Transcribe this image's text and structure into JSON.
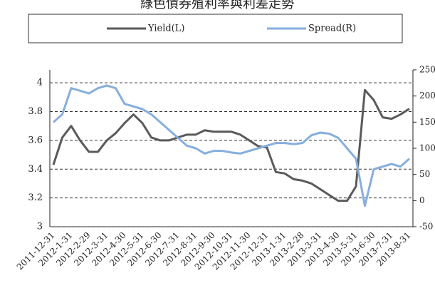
{
  "chart_data": {
    "type": "line",
    "title": "綠色債券殖利率與利差走勢",
    "categories": [
      "2011-12-31",
      null,
      "2012-1-31",
      null,
      "2012-2-29",
      null,
      "2012-3-31",
      null,
      "2012-4-30",
      null,
      "2012-5-31",
      null,
      "2012-6-30",
      null,
      "2012-7-31",
      null,
      "2012-8-31",
      null,
      "2012-9-30",
      null,
      "2012-10-31",
      null,
      "2012-11-30",
      null,
      "2012-12-31",
      null,
      "2013-1-31",
      null,
      "2013-2-28",
      null,
      "2013-3-31",
      null,
      "2013-4-30",
      null,
      "2013-5-31",
      null,
      "2013-6-30",
      null,
      "2013-7-31",
      null,
      "2013-8-31"
    ],
    "series": [
      {
        "name": "Yield(L)",
        "color": "#5a5a5a",
        "values": [
          3.43,
          3.62,
          3.7,
          3.6,
          3.52,
          3.52,
          3.6,
          3.65,
          3.72,
          3.78,
          3.72,
          3.62,
          3.6,
          3.6,
          3.62,
          3.64,
          3.64,
          3.67,
          3.66,
          3.66,
          3.66,
          3.64,
          3.6,
          3.56,
          3.55,
          3.38,
          3.37,
          3.33,
          3.32,
          3.3,
          3.26,
          3.22,
          3.18,
          3.18,
          3.28,
          3.95,
          3.88,
          3.76,
          3.75,
          3.78,
          3.82
        ]
      },
      {
        "name": "Spread(R)",
        "color": "#86aede",
        "axis": "y2",
        "values": [
          150,
          165,
          215,
          210,
          205,
          215,
          220,
          215,
          185,
          180,
          175,
          165,
          150,
          135,
          120,
          105,
          100,
          90,
          95,
          95,
          92,
          90,
          95,
          100,
          105,
          110,
          110,
          108,
          110,
          125,
          130,
          128,
          120,
          100,
          80,
          -10,
          60,
          65,
          70,
          65,
          80
        ]
      }
    ],
    "ylim": [
      3,
      4.09
    ],
    "yticks": [
      3,
      3.2,
      3.4,
      3.6,
      3.8,
      4
    ],
    "y2lim": [
      -50,
      250
    ],
    "y2ticks": [
      -50,
      0,
      50,
      100,
      150,
      200,
      250
    ],
    "grid": true
  }
}
